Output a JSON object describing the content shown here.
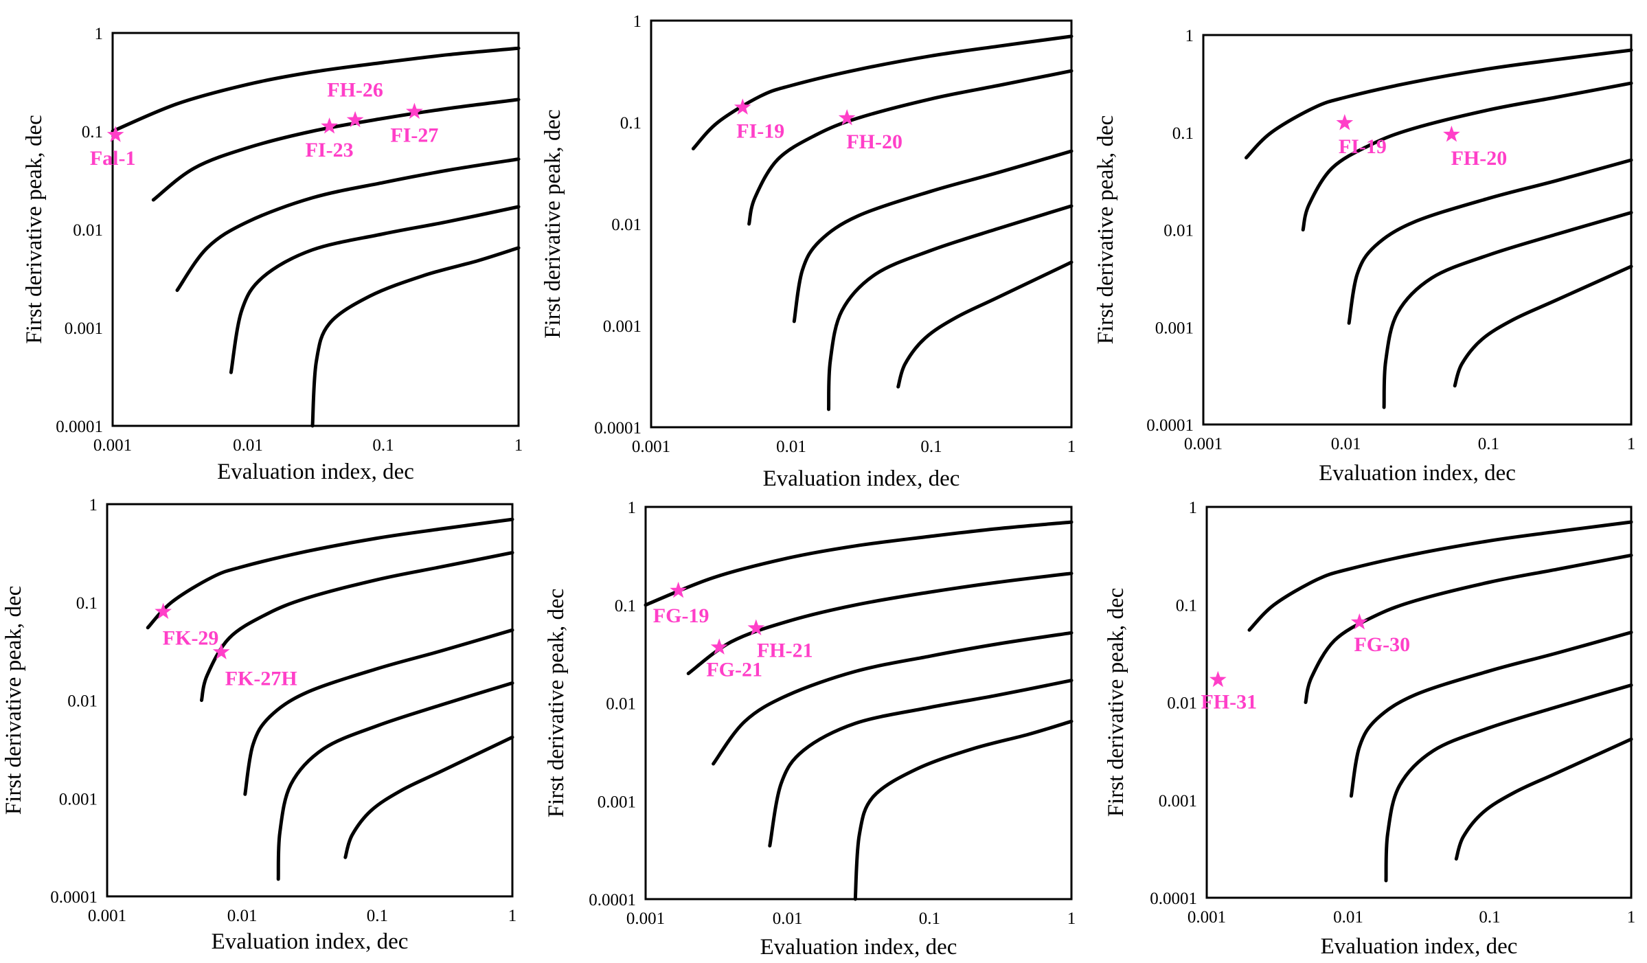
{
  "colors": {
    "marker": "#ff3fc8",
    "curve": "#000000",
    "frame": "#000000"
  },
  "chart_data": [
    {
      "type": "scatter",
      "xscale": "log",
      "yscale": "log",
      "xlim": [
        0.001,
        1
      ],
      "ylim": [
        0.0001,
        1
      ],
      "xlabel": "Evaluation index, dec",
      "ylabel": "First derivative peak, dec",
      "xticks": [
        "0.001",
        "0.01",
        "0.1",
        "1"
      ],
      "yticks": [
        "1",
        "0.1",
        "0.01",
        "0.001",
        "0.0001"
      ],
      "curves": [
        {
          "x": [
            0.001,
            0.003,
            0.01,
            0.03,
            0.1,
            0.3,
            1
          ],
          "y": [
            0.1,
            0.19,
            0.3,
            0.4,
            0.5,
            0.6,
            0.7
          ]
        },
        {
          "x": [
            0.002,
            0.004,
            0.01,
            0.03,
            0.1,
            0.3,
            1
          ],
          "y": [
            0.02,
            0.042,
            0.068,
            0.1,
            0.135,
            0.17,
            0.21
          ]
        },
        {
          "x": [
            0.003,
            0.005,
            0.01,
            0.03,
            0.1,
            0.3,
            1
          ],
          "y": [
            0.0024,
            0.0065,
            0.012,
            0.021,
            0.03,
            0.04,
            0.052
          ]
        },
        {
          "x": [
            0.0075,
            0.009,
            0.013,
            0.03,
            0.1,
            0.3,
            1
          ],
          "y": [
            0.00035,
            0.0015,
            0.0033,
            0.0062,
            0.009,
            0.012,
            0.017
          ]
        },
        {
          "x": [
            0.03,
            0.032,
            0.04,
            0.08,
            0.2,
            0.5,
            1
          ],
          "y": [
            0.0001,
            0.00045,
            0.0011,
            0.0021,
            0.0034,
            0.0048,
            0.0065
          ]
        }
      ],
      "points": [
        {
          "name": "Fal-1",
          "x": 0.00105,
          "y": 0.092
        },
        {
          "name": "FH-26",
          "x": 0.062,
          "y": 0.13
        },
        {
          "name": "FI-23",
          "x": 0.04,
          "y": 0.112
        },
        {
          "name": "FI-27",
          "x": 0.17,
          "y": 0.158
        }
      ]
    },
    {
      "type": "scatter",
      "xscale": "log",
      "yscale": "log",
      "xlim": [
        0.001,
        1
      ],
      "ylim": [
        0.0001,
        1
      ],
      "xlabel": "Evaluation index, dec",
      "ylabel": "First derivative peak, dec",
      "xticks": [
        "0.001",
        "0.01",
        "0.1",
        "1"
      ],
      "yticks": [
        "1",
        "0.1",
        "0.01",
        "0.001",
        "0.0001"
      ],
      "curves": [
        {
          "x": [
            0.002,
            0.003,
            0.006,
            0.01,
            0.03,
            0.1,
            0.3,
            1
          ],
          "y": [
            0.055,
            0.1,
            0.18,
            0.23,
            0.33,
            0.45,
            0.56,
            0.7
          ]
        },
        {
          "x": [
            0.005,
            0.0055,
            0.008,
            0.015,
            0.03,
            0.1,
            0.3,
            1
          ],
          "y": [
            0.01,
            0.018,
            0.043,
            0.075,
            0.11,
            0.17,
            0.23,
            0.32
          ]
        },
        {
          "x": [
            0.0105,
            0.012,
            0.016,
            0.03,
            0.1,
            0.3,
            1
          ],
          "y": [
            0.0011,
            0.0035,
            0.0068,
            0.012,
            0.021,
            0.032,
            0.052
          ]
        },
        {
          "x": [
            0.0185,
            0.019,
            0.023,
            0.04,
            0.1,
            0.3,
            1
          ],
          "y": [
            0.00015,
            0.00045,
            0.0014,
            0.0032,
            0.0055,
            0.009,
            0.015
          ]
        },
        {
          "x": [
            0.058,
            0.065,
            0.09,
            0.15,
            0.3,
            1
          ],
          "y": [
            0.00025,
            0.00042,
            0.00075,
            0.0012,
            0.0019,
            0.0042
          ]
        }
      ],
      "points": [
        {
          "name": "FI-19",
          "x": 0.0045,
          "y": 0.14
        },
        {
          "name": "FH-20",
          "x": 0.025,
          "y": 0.11
        }
      ]
    },
    {
      "type": "scatter",
      "xscale": "log",
      "yscale": "log",
      "xlim": [
        0.001,
        1
      ],
      "ylim": [
        0.0001,
        1
      ],
      "xlabel": "Evaluation index, dec",
      "ylabel": "First derivative peak, dec",
      "xticks": [
        "0.001",
        "0.01",
        "0.1",
        "1"
      ],
      "yticks": [
        "1",
        "0.1",
        "0.01",
        "0.001",
        "0.0001"
      ],
      "curves": [
        {
          "x": [
            0.002,
            0.003,
            0.006,
            0.01,
            0.03,
            0.1,
            0.3,
            1
          ],
          "y": [
            0.055,
            0.1,
            0.18,
            0.23,
            0.33,
            0.45,
            0.56,
            0.7
          ]
        },
        {
          "x": [
            0.005,
            0.0055,
            0.008,
            0.015,
            0.03,
            0.1,
            0.3,
            1
          ],
          "y": [
            0.01,
            0.018,
            0.043,
            0.075,
            0.11,
            0.17,
            0.23,
            0.32
          ]
        },
        {
          "x": [
            0.0105,
            0.012,
            0.016,
            0.03,
            0.1,
            0.3,
            1
          ],
          "y": [
            0.0011,
            0.0035,
            0.0068,
            0.012,
            0.021,
            0.032,
            0.052
          ]
        },
        {
          "x": [
            0.0185,
            0.019,
            0.023,
            0.04,
            0.1,
            0.3,
            1
          ],
          "y": [
            0.00015,
            0.00045,
            0.0014,
            0.0032,
            0.0055,
            0.009,
            0.015
          ]
        },
        {
          "x": [
            0.058,
            0.065,
            0.09,
            0.15,
            0.3,
            1
          ],
          "y": [
            0.00025,
            0.00042,
            0.00075,
            0.0012,
            0.0019,
            0.0042
          ]
        }
      ],
      "points": [
        {
          "name": "FI-19",
          "x": 0.0098,
          "y": 0.125
        },
        {
          "name": "FH-20",
          "x": 0.055,
          "y": 0.095
        }
      ]
    },
    {
      "type": "scatter",
      "xscale": "log",
      "yscale": "log",
      "xlim": [
        0.001,
        1
      ],
      "ylim": [
        0.0001,
        1
      ],
      "xlabel": "Evaluation index, dec",
      "ylabel": "First derivative peak, dec",
      "xticks": [
        "0.001",
        "0.01",
        "0.1",
        "1"
      ],
      "yticks": [
        "1",
        "0.1",
        "0.01",
        "0.001",
        "0.0001"
      ],
      "curves": [
        {
          "x": [
            0.002,
            0.003,
            0.006,
            0.01,
            0.03,
            0.1,
            0.3,
            1
          ],
          "y": [
            0.055,
            0.1,
            0.18,
            0.23,
            0.33,
            0.45,
            0.56,
            0.7
          ]
        },
        {
          "x": [
            0.005,
            0.0055,
            0.008,
            0.015,
            0.03,
            0.1,
            0.3,
            1
          ],
          "y": [
            0.01,
            0.018,
            0.043,
            0.075,
            0.11,
            0.17,
            0.23,
            0.32
          ]
        },
        {
          "x": [
            0.0105,
            0.012,
            0.016,
            0.03,
            0.1,
            0.3,
            1
          ],
          "y": [
            0.0011,
            0.0035,
            0.0068,
            0.012,
            0.021,
            0.032,
            0.052
          ]
        },
        {
          "x": [
            0.0185,
            0.019,
            0.023,
            0.04,
            0.1,
            0.3,
            1
          ],
          "y": [
            0.00015,
            0.00045,
            0.0014,
            0.0032,
            0.0055,
            0.009,
            0.015
          ]
        },
        {
          "x": [
            0.058,
            0.065,
            0.09,
            0.15,
            0.3,
            1
          ],
          "y": [
            0.00025,
            0.00042,
            0.00075,
            0.0012,
            0.0019,
            0.0042
          ]
        }
      ],
      "points": [
        {
          "name": "FK-29",
          "x": 0.0026,
          "y": 0.08
        },
        {
          "name": "FK-27H",
          "x": 0.007,
          "y": 0.031
        }
      ]
    },
    {
      "type": "scatter",
      "xscale": "log",
      "yscale": "log",
      "xlim": [
        0.001,
        1
      ],
      "ylim": [
        0.0001,
        1
      ],
      "xlabel": "Evaluation index, dec",
      "ylabel": "First derivative peak, dec",
      "xticks": [
        "0.001",
        "0.01",
        "0.1",
        "1"
      ],
      "yticks": [
        "1",
        "0.1",
        "0.01",
        "0.001",
        "0.0001"
      ],
      "curves": [
        {
          "x": [
            0.001,
            0.003,
            0.01,
            0.03,
            0.1,
            0.3,
            1
          ],
          "y": [
            0.1,
            0.19,
            0.3,
            0.4,
            0.5,
            0.6,
            0.7
          ]
        },
        {
          "x": [
            0.002,
            0.004,
            0.01,
            0.03,
            0.1,
            0.3,
            1
          ],
          "y": [
            0.02,
            0.042,
            0.068,
            0.1,
            0.135,
            0.17,
            0.21
          ]
        },
        {
          "x": [
            0.003,
            0.005,
            0.01,
            0.03,
            0.1,
            0.3,
            1
          ],
          "y": [
            0.0024,
            0.0065,
            0.012,
            0.021,
            0.03,
            0.04,
            0.052
          ]
        },
        {
          "x": [
            0.0075,
            0.009,
            0.013,
            0.03,
            0.1,
            0.3,
            1
          ],
          "y": [
            0.00035,
            0.0015,
            0.0033,
            0.0062,
            0.009,
            0.012,
            0.017
          ]
        },
        {
          "x": [
            0.03,
            0.032,
            0.04,
            0.08,
            0.2,
            0.5,
            1
          ],
          "y": [
            0.0001,
            0.00045,
            0.0011,
            0.0021,
            0.0034,
            0.0048,
            0.0065
          ]
        }
      ],
      "points": [
        {
          "name": "FG-19",
          "x": 0.0017,
          "y": 0.14
        },
        {
          "name": "FH-21",
          "x": 0.006,
          "y": 0.058
        },
        {
          "name": "FG-21",
          "x": 0.0033,
          "y": 0.037
        }
      ]
    },
    {
      "type": "scatter",
      "xscale": "log",
      "yscale": "log",
      "xlim": [
        0.001,
        1
      ],
      "ylim": [
        0.0001,
        1
      ],
      "xlabel": "Evaluation index, dec",
      "ylabel": "First derivative peak, dec",
      "xticks": [
        "0.001",
        "0.01",
        "0.1",
        "1"
      ],
      "yticks": [
        "1",
        "0.1",
        "0.01",
        "0.001",
        "0.0001"
      ],
      "curves": [
        {
          "x": [
            0.002,
            0.003,
            0.006,
            0.01,
            0.03,
            0.1,
            0.3,
            1
          ],
          "y": [
            0.055,
            0.1,
            0.18,
            0.23,
            0.33,
            0.45,
            0.56,
            0.7
          ]
        },
        {
          "x": [
            0.005,
            0.0055,
            0.008,
            0.015,
            0.03,
            0.1,
            0.3,
            1
          ],
          "y": [
            0.01,
            0.018,
            0.043,
            0.075,
            0.11,
            0.17,
            0.23,
            0.32
          ]
        },
        {
          "x": [
            0.0105,
            0.012,
            0.016,
            0.03,
            0.1,
            0.3,
            1
          ],
          "y": [
            0.0011,
            0.0035,
            0.0068,
            0.012,
            0.021,
            0.032,
            0.052
          ]
        },
        {
          "x": [
            0.0185,
            0.019,
            0.023,
            0.04,
            0.1,
            0.3,
            1
          ],
          "y": [
            0.00015,
            0.00045,
            0.0014,
            0.0032,
            0.0055,
            0.009,
            0.015
          ]
        },
        {
          "x": [
            0.058,
            0.065,
            0.09,
            0.15,
            0.3,
            1
          ],
          "y": [
            0.00025,
            0.00042,
            0.00075,
            0.0012,
            0.0019,
            0.0042
          ]
        }
      ],
      "points": [
        {
          "name": "FG-30",
          "x": 0.012,
          "y": 0.066
        },
        {
          "name": "FH-31",
          "x": 0.0012,
          "y": 0.017
        }
      ]
    }
  ]
}
